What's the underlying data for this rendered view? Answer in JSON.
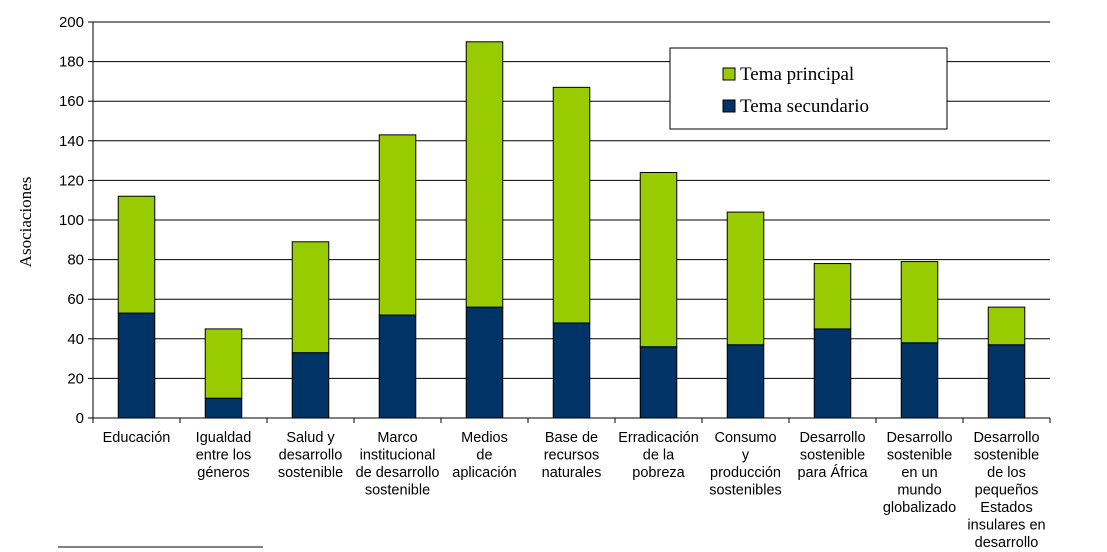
{
  "chart_data": {
    "type": "bar",
    "stacked": true,
    "title": "",
    "xlabel": "",
    "ylabel": "Asociaciones",
    "ylim": [
      0,
      200
    ],
    "yticks": [
      0,
      20,
      40,
      60,
      80,
      100,
      120,
      140,
      160,
      180,
      200
    ],
    "grid": "horizontal",
    "legend_position": "top-right",
    "categories": [
      "Educación",
      "Igualdad entre los géneros",
      "Salud y desarrollo sostenible",
      "Marco institucional de desarrollo sostenible",
      "Medios de aplicación",
      "Base de recursos naturales",
      "Erradicación de la pobreza",
      "Consumo y producción sostenibles",
      "Desarrollo sostenible para África",
      "Desarrollo sostenible en un mundo globalizado",
      "Desarrollo sostenible de los pequeños Estados insulares en desarrollo"
    ],
    "category_lines": [
      [
        "Educación"
      ],
      [
        "Igualdad",
        "entre los",
        "géneros"
      ],
      [
        "Salud y",
        "desarrollo",
        "sostenible"
      ],
      [
        "Marco",
        "institucional",
        "de desarrollo",
        "sostenible"
      ],
      [
        "Medios",
        "de",
        "aplicación"
      ],
      [
        "Base de",
        "recursos",
        "naturales"
      ],
      [
        "Erradicación",
        "de la",
        "pobreza"
      ],
      [
        "Consumo",
        "y",
        "producción",
        "sostenibles"
      ],
      [
        "Desarrollo",
        "sostenible",
        "para África"
      ],
      [
        "Desarrollo",
        "sostenible",
        "en un",
        "mundo",
        "globalizado"
      ],
      [
        "Desarrollo",
        "sostenible",
        "de los",
        "pequeños",
        "Estados",
        "insulares en",
        "desarrollo"
      ]
    ],
    "series": [
      {
        "name": "Tema secundario",
        "color": "#003366",
        "values": [
          53,
          10,
          33,
          52,
          56,
          48,
          36,
          37,
          45,
          38,
          37
        ]
      },
      {
        "name": "Tema principal",
        "color": "#99cc00",
        "values": [
          59,
          35,
          56,
          91,
          134,
          119,
          88,
          67,
          33,
          41,
          19
        ]
      }
    ],
    "legend_order": [
      "Tema principal",
      "Tema secundario"
    ]
  }
}
